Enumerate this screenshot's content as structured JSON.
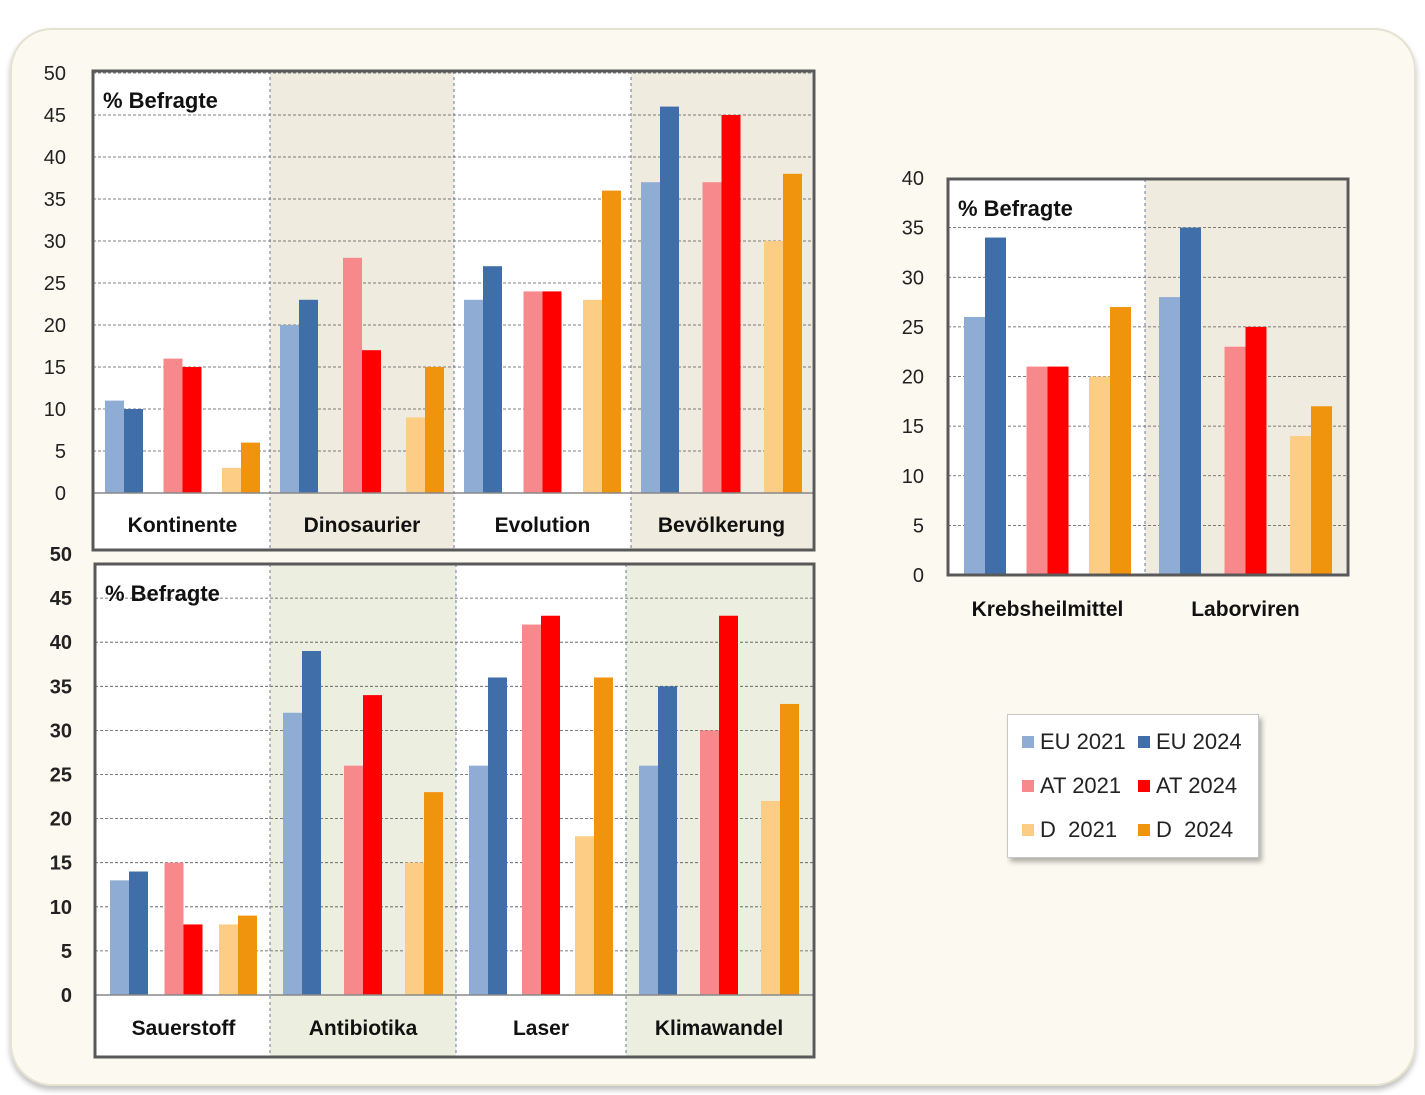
{
  "colors": {
    "eu2021": "#8eacd4",
    "eu2024": "#3f6ea8",
    "at2021": "#f7888c",
    "at2024": "#fe0000",
    "d2021": "#fdcd86",
    "d2024": "#f0940e"
  },
  "legend": [
    {
      "label": "EU 2021",
      "color": "#8eacd4"
    },
    {
      "label": "EU 2024",
      "color": "#3f6ea8"
    },
    {
      "label": "AT 2021",
      "color": "#f7888c"
    },
    {
      "label": "AT 2024",
      "color": "#fe0000"
    },
    {
      "label": "D  2021",
      "color": "#fdcd86"
    },
    {
      "label": "D  2024",
      "color": "#f0940e"
    }
  ],
  "chart_data": [
    {
      "type": "bar",
      "ylabel": "%  Befragte",
      "ylim": [
        0,
        50
      ],
      "ticks": [
        0,
        5,
        10,
        15,
        20,
        25,
        30,
        35,
        40,
        45,
        50
      ],
      "grid": true,
      "categories": [
        "Kontinente",
        "Dinosaurier",
        "Evolution",
        "Bevölkerung"
      ],
      "series": [
        {
          "name": "EU 2021",
          "values": [
            11,
            20,
            23,
            37
          ]
        },
        {
          "name": "EU 2024",
          "values": [
            10,
            23,
            27,
            46
          ]
        },
        {
          "name": "AT 2021",
          "values": [
            16,
            28,
            24,
            37
          ]
        },
        {
          "name": "AT 2024",
          "values": [
            15,
            17,
            24,
            45
          ]
        },
        {
          "name": "D  2021",
          "values": [
            3,
            9,
            23,
            30
          ]
        },
        {
          "name": "D  2024",
          "values": [
            6,
            15,
            36,
            38
          ]
        }
      ]
    },
    {
      "type": "bar",
      "ylabel": "%  Befragte",
      "ylim": [
        0,
        50
      ],
      "ticks": [
        0,
        5,
        10,
        15,
        20,
        25,
        30,
        35,
        40,
        45,
        50
      ],
      "grid": true,
      "categories": [
        "Sauerstoff",
        "Antibiotika",
        "Laser",
        "Klimawandel"
      ],
      "series": [
        {
          "name": "EU 2021",
          "values": [
            13,
            32,
            26,
            26
          ]
        },
        {
          "name": "EU 2024",
          "values": [
            14,
            39,
            36,
            35
          ]
        },
        {
          "name": "AT 2021",
          "values": [
            15,
            26,
            42,
            30
          ]
        },
        {
          "name": "AT 2024",
          "values": [
            8,
            34,
            43,
            43
          ]
        },
        {
          "name": "D  2021",
          "values": [
            8,
            15,
            18,
            22
          ]
        },
        {
          "name": "D  2024",
          "values": [
            9,
            23,
            36,
            33
          ]
        }
      ]
    },
    {
      "type": "bar",
      "ylabel": "%  Befragte",
      "ylim": [
        0,
        40
      ],
      "ticks": [
        0,
        5,
        10,
        15,
        20,
        25,
        30,
        35,
        40
      ],
      "grid": true,
      "categories": [
        "Krebsheilmittel",
        "Laborviren"
      ],
      "series": [
        {
          "name": "EU 2021",
          "values": [
            26,
            28
          ]
        },
        {
          "name": "EU 2024",
          "values": [
            34,
            35
          ]
        },
        {
          "name": "AT 2021",
          "values": [
            21,
            23
          ]
        },
        {
          "name": "AT 2024",
          "values": [
            21,
            25
          ]
        },
        {
          "name": "D  2021",
          "values": [
            20,
            14
          ]
        },
        {
          "name": "D  2024",
          "values": [
            27,
            17
          ]
        }
      ]
    }
  ]
}
